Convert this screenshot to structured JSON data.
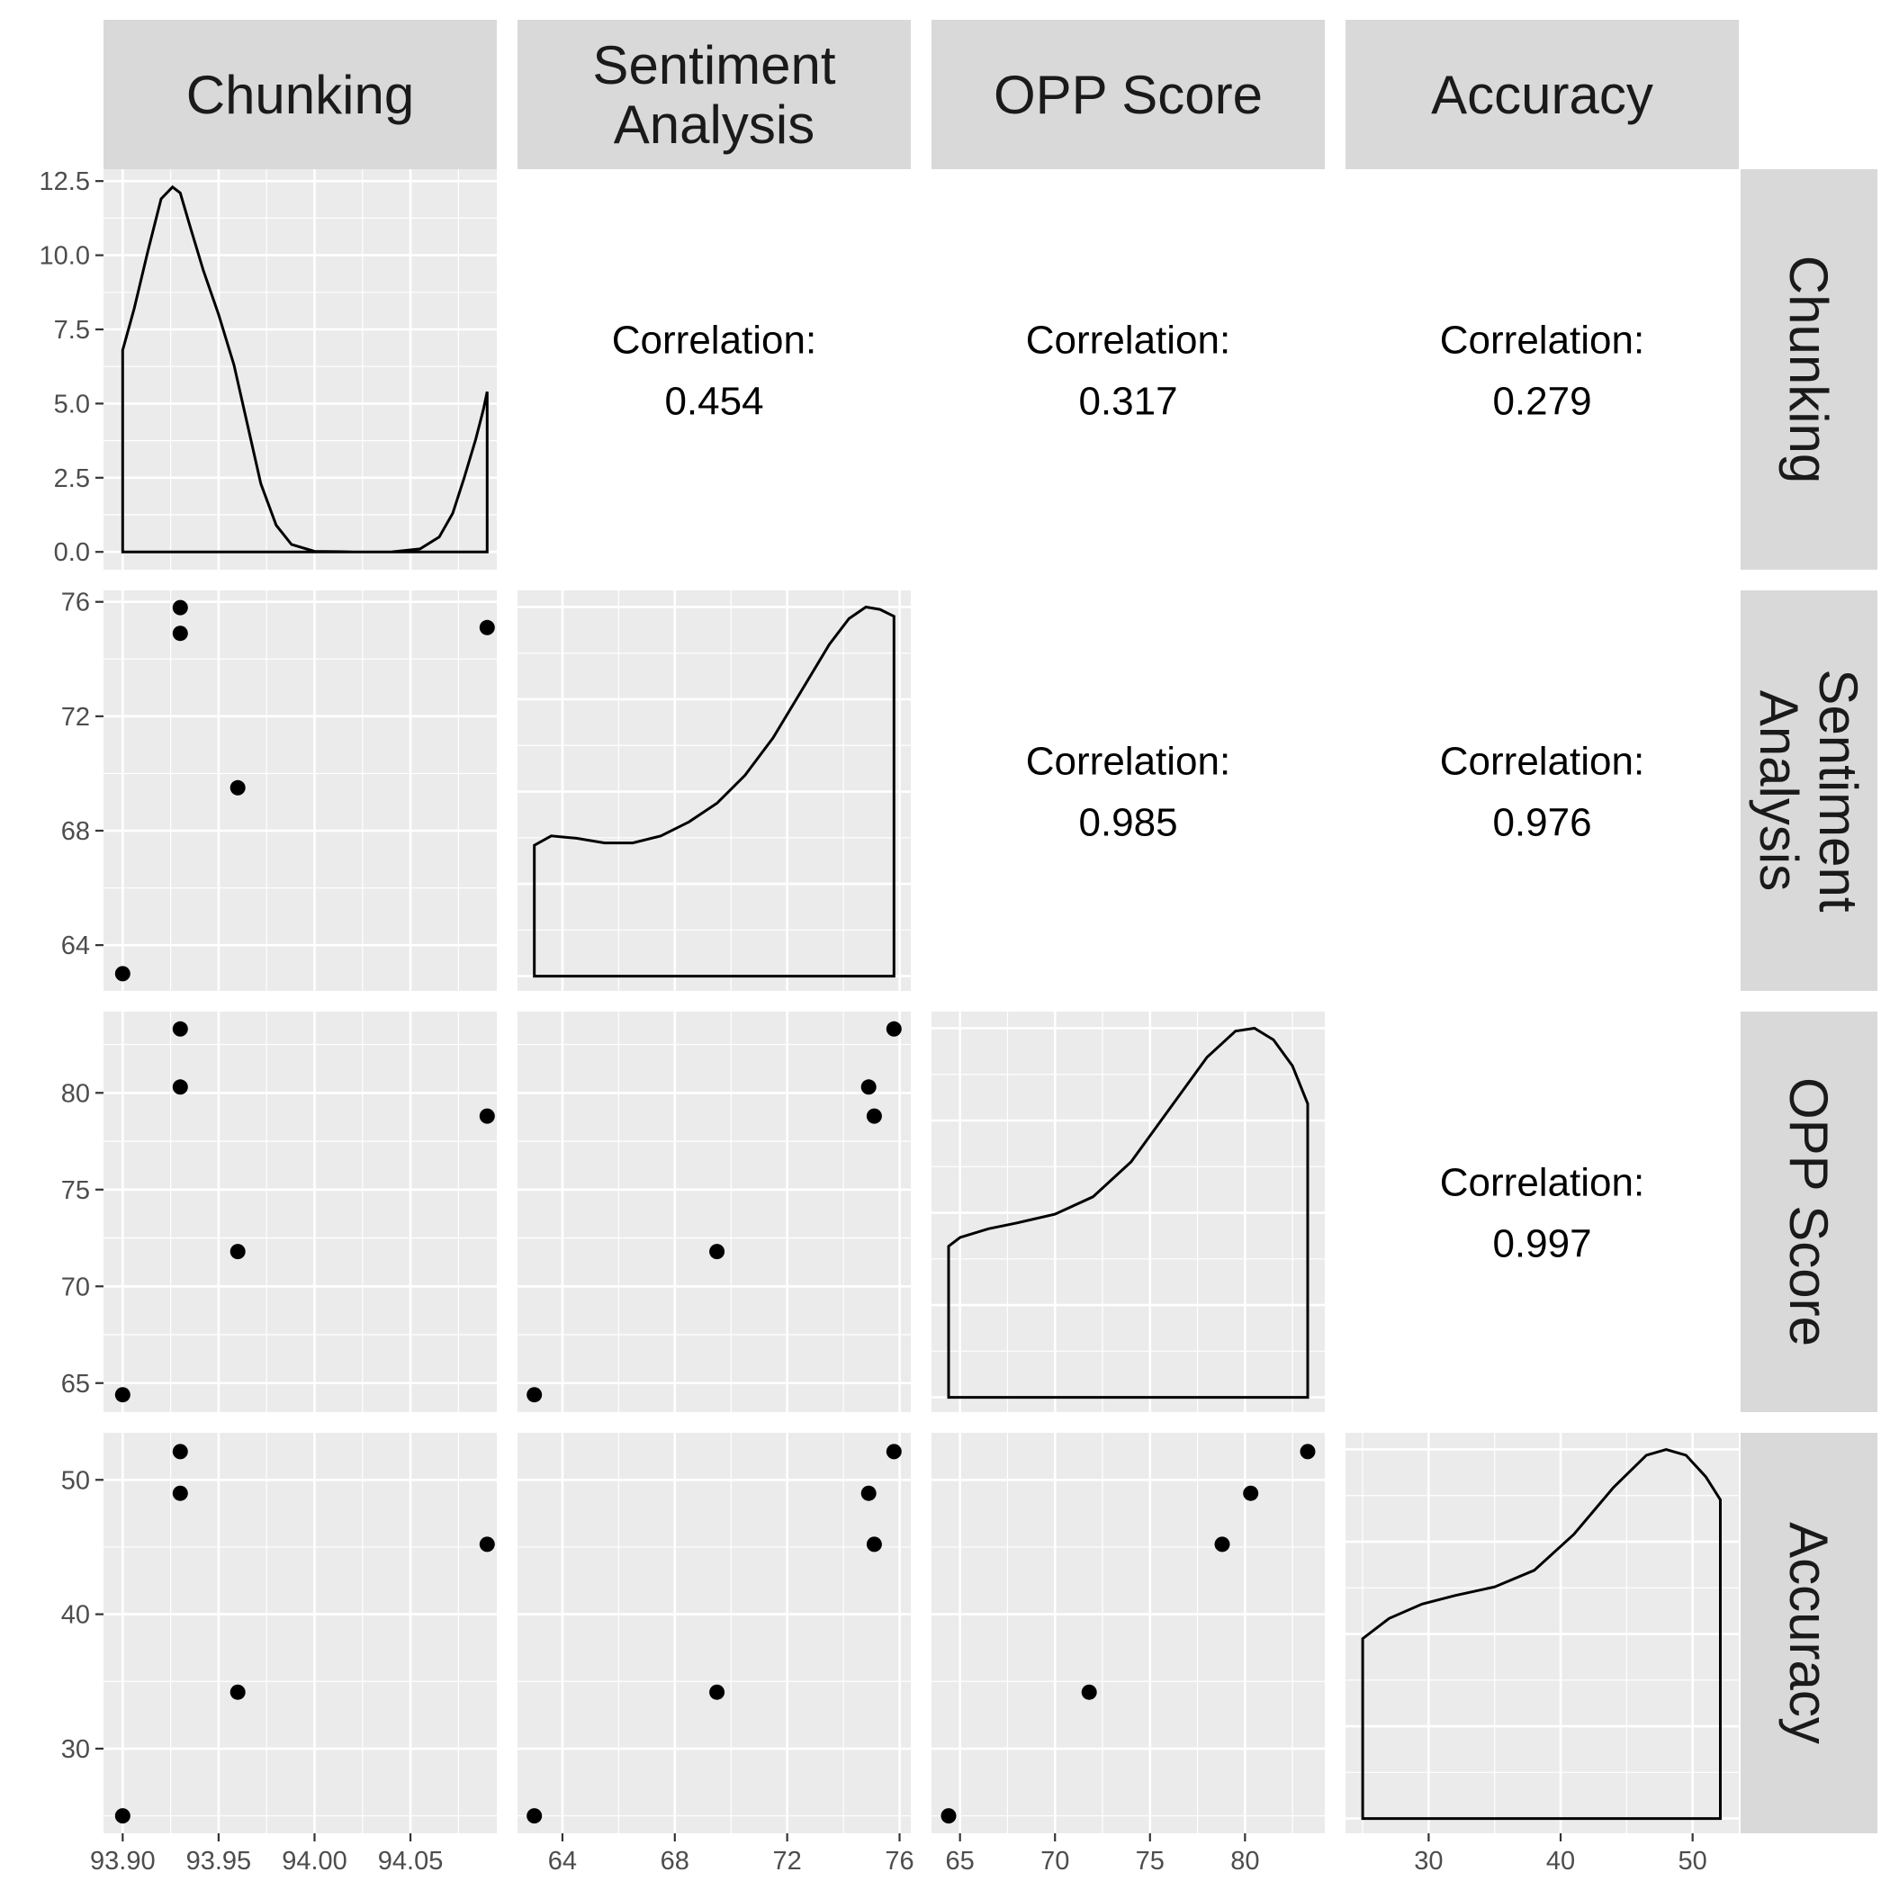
{
  "chart_data": {
    "type": "scatter",
    "title": "",
    "variables": [
      "Chunking",
      "Sentiment Analysis",
      "OPP Score",
      "Accuracy"
    ],
    "strip_labels": {
      "top": [
        [
          "Chunking"
        ],
        [
          "Sentiment",
          "Analysis"
        ],
        [
          "OPP Score"
        ],
        [
          "Accuracy"
        ]
      ],
      "right": [
        [
          "Chunking"
        ],
        [
          "Sentiment",
          "Analysis"
        ],
        [
          "OPP Score"
        ],
        [
          "Accuracy"
        ]
      ]
    },
    "correlation_label": "Correlation:",
    "correlations": [
      {
        "row": 0,
        "col": 1,
        "value": "0.454"
      },
      {
        "row": 0,
        "col": 2,
        "value": "0.317"
      },
      {
        "row": 0,
        "col": 3,
        "value": "0.279"
      },
      {
        "row": 1,
        "col": 2,
        "value": "0.985"
      },
      {
        "row": 1,
        "col": 3,
        "value": "0.976"
      },
      {
        "row": 2,
        "col": 3,
        "value": "0.997"
      }
    ],
    "observations": [
      {
        "Chunking": 93.9,
        "Sentiment Analysis": 63.0,
        "OPP Score": 64.4,
        "Accuracy": 25.0
      },
      {
        "Chunking": 93.93,
        "Sentiment Analysis": 75.8,
        "OPP Score": 83.3,
        "Accuracy": 52.1
      },
      {
        "Chunking": 93.93,
        "Sentiment Analysis": 74.9,
        "OPP Score": 80.3,
        "Accuracy": 49.0
      },
      {
        "Chunking": 93.96,
        "Sentiment Analysis": 69.5,
        "OPP Score": 71.8,
        "Accuracy": 34.2
      },
      {
        "Chunking": 94.09,
        "Sentiment Analysis": 75.1,
        "OPP Score": 78.8,
        "Accuracy": 45.2
      }
    ],
    "axes": {
      "Chunking": {
        "range": [
          93.89,
          94.095
        ],
        "ticks": [
          93.9,
          93.95,
          94.0,
          94.05
        ],
        "tick_labels": [
          "93.90",
          "93.95",
          "94.00",
          "94.05"
        ]
      },
      "Sentiment Analysis": {
        "range": [
          62.4,
          76.4
        ],
        "ticks": [
          64,
          68,
          72,
          76
        ],
        "tick_labels": [
          "64",
          "68",
          "72",
          "76"
        ]
      },
      "OPP Score": {
        "range": [
          63.5,
          84.2
        ],
        "ticks": [
          65,
          70,
          75,
          80
        ],
        "tick_labels": [
          "65",
          "70",
          "75",
          "80"
        ]
      },
      "Accuracy": {
        "range": [
          23.7,
          53.5
        ],
        "ticks": [
          30,
          40,
          50
        ],
        "tick_labels": [
          "30",
          "40",
          "50"
        ]
      }
    },
    "density_axis": {
      "range": [
        -0.6,
        12.9
      ],
      "ticks": [
        0,
        2.5,
        5,
        7.5,
        10,
        12.5
      ],
      "tick_labels": [
        "0.0",
        "2.5",
        "5.0",
        "7.5",
        "10.0",
        "12.5"
      ]
    },
    "densities": [
      {
        "variable": "Chunking",
        "x": [
          93.9,
          93.906,
          93.913,
          93.92,
          93.926,
          93.93,
          93.935,
          93.942,
          93.95,
          93.958,
          93.965,
          93.972,
          93.98,
          93.988,
          94.0,
          94.02,
          94.04,
          94.055,
          94.065,
          94.072,
          94.078,
          94.084,
          94.088,
          94.09
        ],
        "y": [
          6.8,
          8.2,
          10.1,
          11.9,
          12.3,
          12.1,
          11.0,
          9.5,
          8.0,
          6.3,
          4.3,
          2.3,
          0.9,
          0.25,
          0.02,
          0.0,
          0.0,
          0.1,
          0.5,
          1.3,
          2.5,
          3.8,
          4.8,
          5.4
        ]
      },
      {
        "variable": "Sentiment Analysis",
        "x": [
          63.0,
          63.6,
          64.5,
          65.5,
          66.5,
          67.5,
          68.5,
          69.5,
          70.5,
          71.5,
          72.5,
          73.5,
          74.2,
          74.8,
          75.3,
          75.8
        ],
        "y": [
          0.28,
          0.3,
          0.295,
          0.285,
          0.285,
          0.3,
          0.33,
          0.37,
          0.43,
          0.51,
          0.61,
          0.71,
          0.765,
          0.79,
          0.785,
          0.77
        ]
      },
      {
        "variable": "OPP Score",
        "x": [
          64.4,
          65.0,
          66.5,
          68.0,
          70.0,
          72.0,
          74.0,
          76.0,
          78.0,
          79.5,
          80.5,
          81.5,
          82.5,
          83.3
        ],
        "y": [
          0.26,
          0.275,
          0.29,
          0.3,
          0.315,
          0.345,
          0.405,
          0.495,
          0.585,
          0.63,
          0.635,
          0.615,
          0.57,
          0.505
        ]
      },
      {
        "variable": "Accuracy",
        "x": [
          25.0,
          27.0,
          29.5,
          32.0,
          35.0,
          38.0,
          41.0,
          44.0,
          46.5,
          48.0,
          49.5,
          51.0,
          52.1
        ],
        "y": [
          0.25,
          0.278,
          0.298,
          0.31,
          0.322,
          0.345,
          0.395,
          0.46,
          0.505,
          0.513,
          0.505,
          0.475,
          0.443
        ]
      }
    ]
  }
}
